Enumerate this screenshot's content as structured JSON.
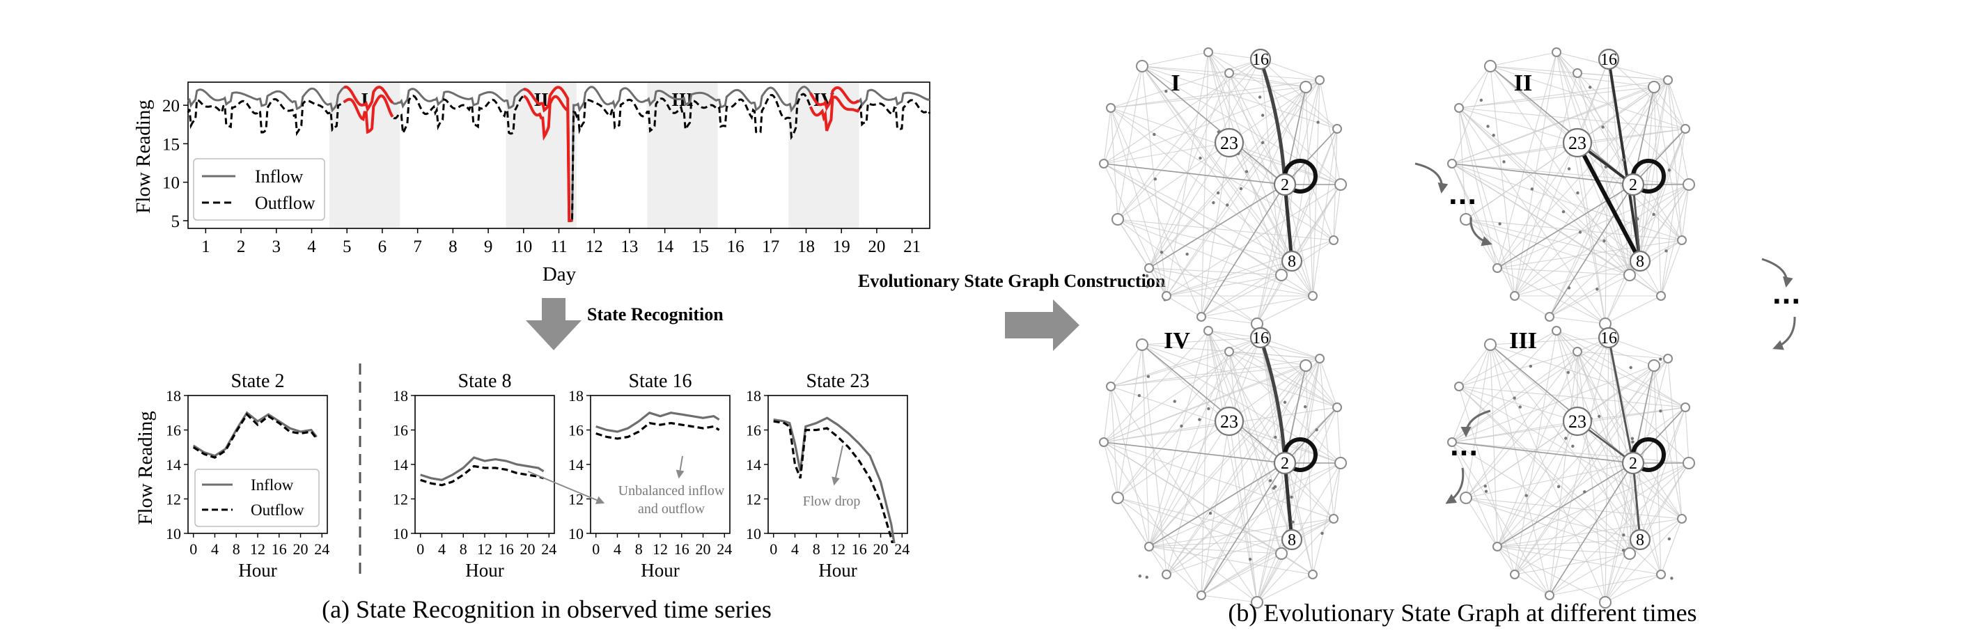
{
  "colors": {
    "inflow": "#6e6e6e",
    "outflow": "#000000",
    "state_highlight": "#e8211f",
    "shade": "#efefef",
    "arrow": "#8a8a8a",
    "annotation": "#7a7a7a"
  },
  "top_plot": {
    "ylabel": "Flow Reading",
    "xlabel": "Day",
    "yticks": [
      "5",
      "10",
      "15",
      "20"
    ],
    "xticks": [
      "1",
      "2",
      "3",
      "4",
      "5",
      "6",
      "7",
      "8",
      "9",
      "10",
      "11",
      "12",
      "13",
      "14",
      "15",
      "16",
      "17",
      "18",
      "19",
      "20",
      "21"
    ],
    "legend": {
      "inflow": "Inflow",
      "outflow": "Outflow"
    },
    "region_labels": [
      "I",
      "II",
      "III",
      "IV"
    ]
  },
  "state_recognition_label": "State Recognition",
  "construction_label": "Evolutionary State Graph Construction",
  "state_panels": {
    "titles": [
      "State 2",
      "State 8",
      "State 16",
      "State 23"
    ],
    "ylabel": "Flow Reading",
    "xlabel": "Hour",
    "yticks": [
      "10",
      "12",
      "14",
      "16",
      "18"
    ],
    "yticks_state23": [
      "10",
      "12",
      "14",
      "16",
      "18"
    ],
    "xticks": [
      "0",
      "4",
      "8",
      "12",
      "16",
      "20",
      "24"
    ],
    "legend": {
      "inflow": "Inflow",
      "outflow": "Outflow"
    },
    "annotation_unbalanced": [
      "Unbalanced inflow",
      "and outflow"
    ],
    "annotation_drop": "Flow drop"
  },
  "caption_a": "(a) State Recognition in observed time series",
  "caption_b": "(b) Evolutionary State Graph at different times",
  "graphs": {
    "labels": [
      "I",
      "II",
      "IV",
      "III"
    ],
    "node_labels": [
      "16",
      "23",
      "2",
      "8"
    ],
    "ellipsis": "···"
  },
  "chart_data": [
    {
      "type": "line",
      "xlabel": "Day",
      "ylabel": "Flow Reading",
      "xlim": [
        0.5,
        21.5
      ],
      "ylim": [
        4,
        23
      ],
      "series": [
        {
          "name": "Inflow",
          "values_desc": "oscillating near 20-22 each day"
        },
        {
          "name": "Outflow",
          "values_desc": "oscillating near 17-21 each day, drop to 5 near day 11.3"
        }
      ],
      "highlight_regions": [
        {
          "label": "I",
          "x": [
            4.5,
            6.5
          ]
        },
        {
          "label": "II",
          "x": [
            9.5,
            11.5
          ]
        },
        {
          "label": "III",
          "x": [
            13.5,
            15.5
          ]
        },
        {
          "label": "IV",
          "x": [
            17.5,
            19.5
          ]
        }
      ]
    },
    {
      "type": "line",
      "title": "State 2",
      "x": [
        0,
        2,
        4,
        6,
        8,
        10,
        12,
        14,
        16,
        18,
        20,
        22,
        23
      ],
      "series": [
        {
          "name": "Inflow",
          "values": [
            15.1,
            14.7,
            14.5,
            14.9,
            16.0,
            17.0,
            16.5,
            16.9,
            16.5,
            16.1,
            15.9,
            16.0,
            15.6
          ]
        },
        {
          "name": "Outflow",
          "values": [
            15.0,
            14.6,
            14.4,
            14.8,
            15.9,
            16.9,
            16.3,
            16.8,
            16.4,
            15.9,
            15.8,
            15.9,
            15.5
          ]
        }
      ],
      "xlim": [
        -1,
        25
      ],
      "ylim": [
        10,
        18
      ]
    },
    {
      "type": "line",
      "title": "State 8",
      "x": [
        0,
        2,
        4,
        6,
        8,
        10,
        12,
        14,
        16,
        18,
        20,
        22,
        23
      ],
      "series": [
        {
          "name": "Inflow",
          "values": [
            13.4,
            13.2,
            13.1,
            13.4,
            13.8,
            14.4,
            14.2,
            14.3,
            14.2,
            14.0,
            13.9,
            13.8,
            13.6
          ]
        },
        {
          "name": "Outflow",
          "values": [
            13.1,
            12.9,
            12.8,
            13.0,
            13.4,
            13.9,
            13.8,
            13.8,
            13.7,
            13.5,
            13.4,
            13.3,
            13.2
          ]
        }
      ],
      "xlim": [
        -1,
        25
      ],
      "ylim": [
        10,
        18
      ]
    },
    {
      "type": "line",
      "title": "State 16",
      "x": [
        0,
        2,
        4,
        6,
        8,
        10,
        12,
        14,
        16,
        18,
        20,
        22,
        23
      ],
      "series": [
        {
          "name": "Inflow",
          "values": [
            16.2,
            16.0,
            15.9,
            16.1,
            16.5,
            17.0,
            16.8,
            17.0,
            16.9,
            16.8,
            16.7,
            16.8,
            16.6
          ]
        },
        {
          "name": "Outflow",
          "values": [
            15.8,
            15.6,
            15.5,
            15.6,
            15.9,
            16.4,
            16.3,
            16.4,
            16.3,
            16.2,
            16.1,
            16.2,
            16.0
          ]
        }
      ],
      "xlim": [
        -1,
        25
      ],
      "ylim": [
        10,
        18
      ]
    },
    {
      "type": "line",
      "title": "State 23",
      "x": [
        0,
        2,
        3,
        4,
        5,
        6,
        8,
        10,
        12,
        14,
        16,
        18,
        20,
        22,
        23
      ],
      "series": [
        {
          "name": "Inflow",
          "values": [
            16.6,
            16.5,
            16.4,
            15.2,
            13.6,
            16.2,
            16.4,
            16.7,
            16.3,
            15.8,
            15.2,
            14.5,
            13.0,
            10.5,
            8.5
          ]
        },
        {
          "name": "Outflow",
          "values": [
            16.5,
            16.4,
            16.2,
            14.0,
            13.2,
            16.0,
            16.0,
            16.1,
            15.6,
            15.0,
            14.2,
            13.2,
            11.8,
            9.7,
            8.2
          ]
        }
      ],
      "xlim": [
        -1,
        25
      ],
      "ylim": [
        8,
        18
      ]
    }
  ]
}
